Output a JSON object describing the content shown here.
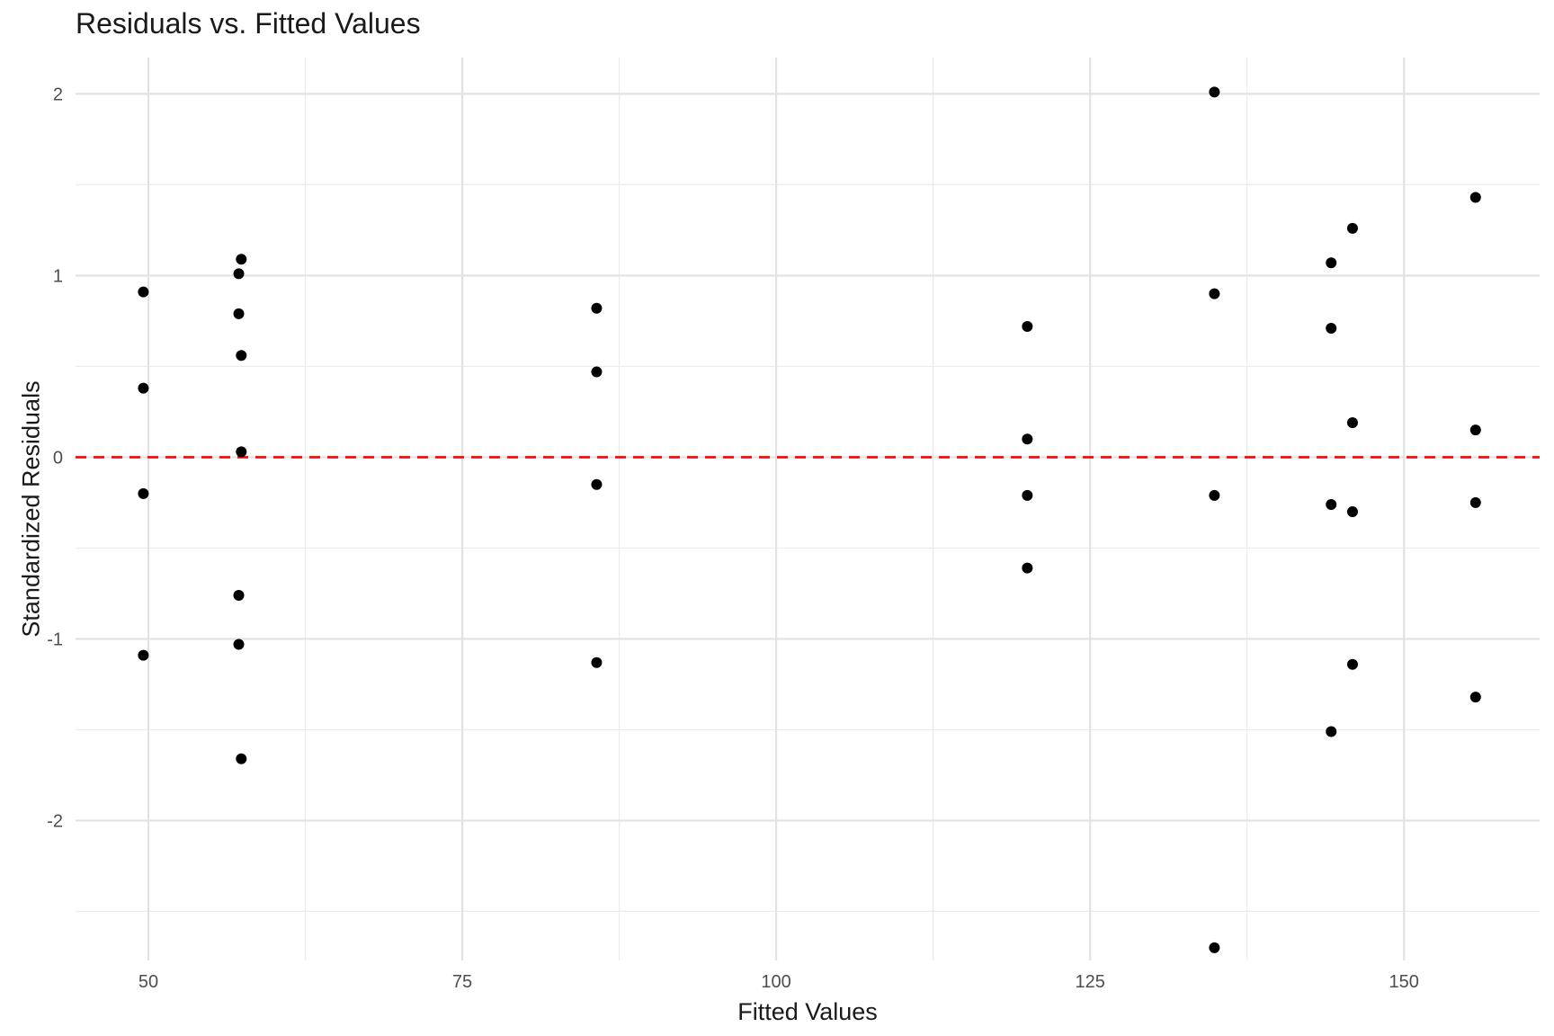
{
  "chart_data": {
    "type": "scatter",
    "title": "Residuals vs. Fitted Values",
    "xlabel": "Fitted Values",
    "ylabel": "Standardized Residuals",
    "xlim": [
      44.2,
      160.8
    ],
    "ylim": [
      -2.77,
      2.2
    ],
    "x_ticks": [
      50,
      75,
      100,
      125,
      150
    ],
    "x_tick_labels": [
      "50",
      "75",
      "100",
      "125",
      "150"
    ],
    "y_ticks": [
      -2,
      -1,
      0,
      1,
      2
    ],
    "y_tick_labels": [
      "-2",
      "-1",
      "0",
      "1",
      "2"
    ],
    "grid": true,
    "legend": "none",
    "reference_line": {
      "y": 0,
      "style": "dashed",
      "color": "#ff0000"
    },
    "point_color": "#000000",
    "points": [
      {
        "x": 49.6,
        "y": 0.91
      },
      {
        "x": 49.6,
        "y": 0.38
      },
      {
        "x": 49.6,
        "y": -0.2
      },
      {
        "x": 49.6,
        "y": -1.09
      },
      {
        "x": 57.2,
        "y": 1.01
      },
      {
        "x": 57.2,
        "y": 0.79
      },
      {
        "x": 57.2,
        "y": -0.76
      },
      {
        "x": 57.2,
        "y": -1.03
      },
      {
        "x": 57.4,
        "y": 1.09
      },
      {
        "x": 57.4,
        "y": 0.56
      },
      {
        "x": 57.4,
        "y": 0.03
      },
      {
        "x": 57.4,
        "y": -1.66
      },
      {
        "x": 85.7,
        "y": 0.82
      },
      {
        "x": 85.7,
        "y": 0.47
      },
      {
        "x": 85.7,
        "y": -0.15
      },
      {
        "x": 85.7,
        "y": -1.13
      },
      {
        "x": 120.0,
        "y": 0.72
      },
      {
        "x": 120.0,
        "y": 0.1
      },
      {
        "x": 120.0,
        "y": -0.21
      },
      {
        "x": 120.0,
        "y": -0.61
      },
      {
        "x": 134.9,
        "y": 2.01
      },
      {
        "x": 134.9,
        "y": 0.9
      },
      {
        "x": 134.9,
        "y": -0.21
      },
      {
        "x": 134.9,
        "y": -2.7
      },
      {
        "x": 144.2,
        "y": 1.07
      },
      {
        "x": 144.2,
        "y": 0.71
      },
      {
        "x": 144.2,
        "y": -0.26
      },
      {
        "x": 144.2,
        "y": -1.51
      },
      {
        "x": 145.9,
        "y": 1.26
      },
      {
        "x": 145.9,
        "y": 0.19
      },
      {
        "x": 145.9,
        "y": -0.3
      },
      {
        "x": 145.9,
        "y": -1.14
      },
      {
        "x": 155.7,
        "y": 1.43
      },
      {
        "x": 155.7,
        "y": 0.15
      },
      {
        "x": 155.7,
        "y": -0.25
      },
      {
        "x": 155.7,
        "y": -1.32
      }
    ]
  }
}
